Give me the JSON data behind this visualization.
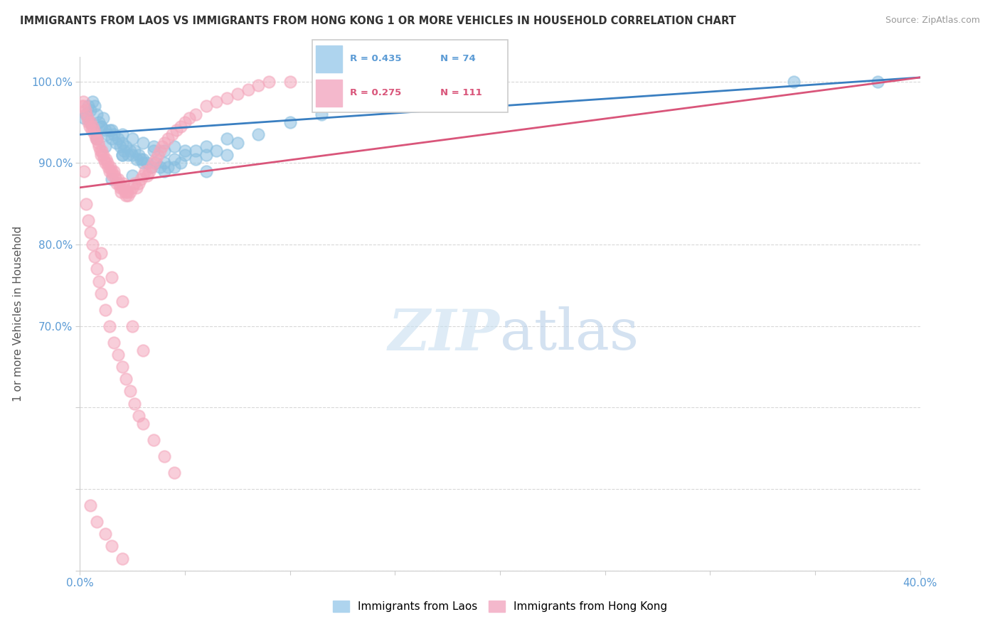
{
  "title": "IMMIGRANTS FROM LAOS VS IMMIGRANTS FROM HONG KONG 1 OR MORE VEHICLES IN HOUSEHOLD CORRELATION CHART",
  "source": "Source: ZipAtlas.com",
  "ylabel": "1 or more Vehicles in Household",
  "xlim": [
    0.0,
    40.0
  ],
  "ylim": [
    40.0,
    103.0
  ],
  "xticks": [
    0.0,
    5.0,
    10.0,
    15.0,
    20.0,
    25.0,
    30.0,
    35.0,
    40.0
  ],
  "yticks": [
    40.0,
    50.0,
    60.0,
    70.0,
    80.0,
    90.0,
    100.0
  ],
  "blue_color": "#89bfe0",
  "pink_color": "#f4a7bc",
  "blue_line_color": "#3a7fc1",
  "pink_line_color": "#d9557a",
  "background_color": "#ffffff",
  "grid_color": "#d8d8d8",
  "legend_blue_R": "R = 0.435",
  "legend_blue_N": "N = 74",
  "legend_pink_R": "R = 0.275",
  "legend_pink_N": "N = 111",
  "blue_scatter_x": [
    0.2,
    0.3,
    0.4,
    0.5,
    0.6,
    0.7,
    0.8,
    0.9,
    1.0,
    1.1,
    1.2,
    1.3,
    1.4,
    1.5,
    1.6,
    1.7,
    1.8,
    1.9,
    2.0,
    2.1,
    2.2,
    2.3,
    2.4,
    2.5,
    2.6,
    2.7,
    2.8,
    2.9,
    3.0,
    3.2,
    3.4,
    3.6,
    3.8,
    4.0,
    4.2,
    4.5,
    4.8,
    5.0,
    5.5,
    6.0,
    6.5,
    7.0,
    7.5,
    8.5,
    10.0,
    11.5,
    34.0,
    38.0,
    2.0,
    3.5,
    5.5,
    7.0,
    1.5,
    2.5,
    4.0,
    0.5,
    1.0,
    1.5,
    2.0,
    2.5,
    3.0,
    3.5,
    4.0,
    4.5,
    5.0,
    6.0,
    0.8,
    1.2,
    2.0,
    3.0,
    4.5,
    6.0
  ],
  "blue_scatter_y": [
    95.5,
    96.0,
    97.0,
    96.5,
    97.5,
    97.0,
    96.0,
    95.0,
    94.5,
    95.5,
    94.0,
    93.5,
    94.0,
    93.0,
    93.5,
    92.5,
    93.0,
    92.0,
    92.5,
    91.5,
    92.0,
    91.0,
    91.5,
    91.0,
    91.5,
    90.5,
    91.0,
    90.5,
    90.5,
    90.0,
    89.5,
    90.0,
    89.5,
    90.0,
    89.5,
    90.5,
    90.0,
    91.0,
    91.5,
    92.0,
    91.5,
    93.0,
    92.5,
    93.5,
    95.0,
    96.0,
    100.0,
    100.0,
    91.0,
    91.5,
    90.5,
    91.0,
    88.0,
    88.5,
    89.0,
    95.0,
    94.5,
    94.0,
    93.5,
    93.0,
    92.5,
    92.0,
    91.5,
    92.0,
    91.5,
    91.0,
    93.0,
    92.0,
    91.0,
    90.0,
    89.5,
    89.0
  ],
  "pink_scatter_x": [
    0.1,
    0.15,
    0.2,
    0.25,
    0.3,
    0.35,
    0.4,
    0.45,
    0.5,
    0.55,
    0.6,
    0.65,
    0.7,
    0.75,
    0.8,
    0.85,
    0.9,
    0.95,
    1.0,
    1.05,
    1.1,
    1.15,
    1.2,
    1.25,
    1.3,
    1.35,
    1.4,
    1.45,
    1.5,
    1.55,
    1.6,
    1.65,
    1.7,
    1.75,
    1.8,
    1.85,
    1.9,
    1.95,
    2.0,
    2.05,
    2.1,
    2.15,
    2.2,
    2.25,
    2.3,
    2.4,
    2.5,
    2.6,
    2.7,
    2.8,
    2.9,
    3.0,
    3.1,
    3.2,
    3.3,
    3.4,
    3.5,
    3.6,
    3.7,
    3.8,
    3.9,
    4.0,
    4.2,
    4.4,
    4.6,
    4.8,
    5.0,
    5.2,
    5.5,
    6.0,
    6.5,
    7.0,
    7.5,
    8.0,
    8.5,
    9.0,
    10.0,
    0.2,
    0.3,
    0.4,
    0.5,
    0.6,
    0.7,
    0.8,
    0.9,
    1.0,
    1.2,
    1.4,
    1.6,
    1.8,
    2.0,
    2.2,
    2.4,
    2.6,
    2.8,
    3.0,
    3.5,
    4.0,
    4.5,
    1.0,
    1.5,
    2.0,
    2.5,
    3.0,
    0.5,
    0.8,
    1.2,
    1.5,
    2.0
  ],
  "pink_scatter_y": [
    97.0,
    97.5,
    97.0,
    96.5,
    96.0,
    95.5,
    95.0,
    94.5,
    95.0,
    94.0,
    94.5,
    94.0,
    93.5,
    93.0,
    93.0,
    92.5,
    92.0,
    91.5,
    91.0,
    91.5,
    91.0,
    90.5,
    90.0,
    90.5,
    90.0,
    89.5,
    89.0,
    89.5,
    89.0,
    88.5,
    89.0,
    88.5,
    88.0,
    87.5,
    88.0,
    87.5,
    87.0,
    86.5,
    87.0,
    87.5,
    87.0,
    86.5,
    86.0,
    86.5,
    86.0,
    86.5,
    87.0,
    87.5,
    87.0,
    87.5,
    88.0,
    88.5,
    89.0,
    88.5,
    89.0,
    89.5,
    90.0,
    90.5,
    91.0,
    91.5,
    92.0,
    92.5,
    93.0,
    93.5,
    94.0,
    94.5,
    95.0,
    95.5,
    96.0,
    97.0,
    97.5,
    98.0,
    98.5,
    99.0,
    99.5,
    100.0,
    100.0,
    89.0,
    85.0,
    83.0,
    81.5,
    80.0,
    78.5,
    77.0,
    75.5,
    74.0,
    72.0,
    70.0,
    68.0,
    66.5,
    65.0,
    63.5,
    62.0,
    60.5,
    59.0,
    58.0,
    56.0,
    54.0,
    52.0,
    79.0,
    76.0,
    73.0,
    70.0,
    67.0,
    48.0,
    46.0,
    44.5,
    43.0,
    41.5
  ]
}
